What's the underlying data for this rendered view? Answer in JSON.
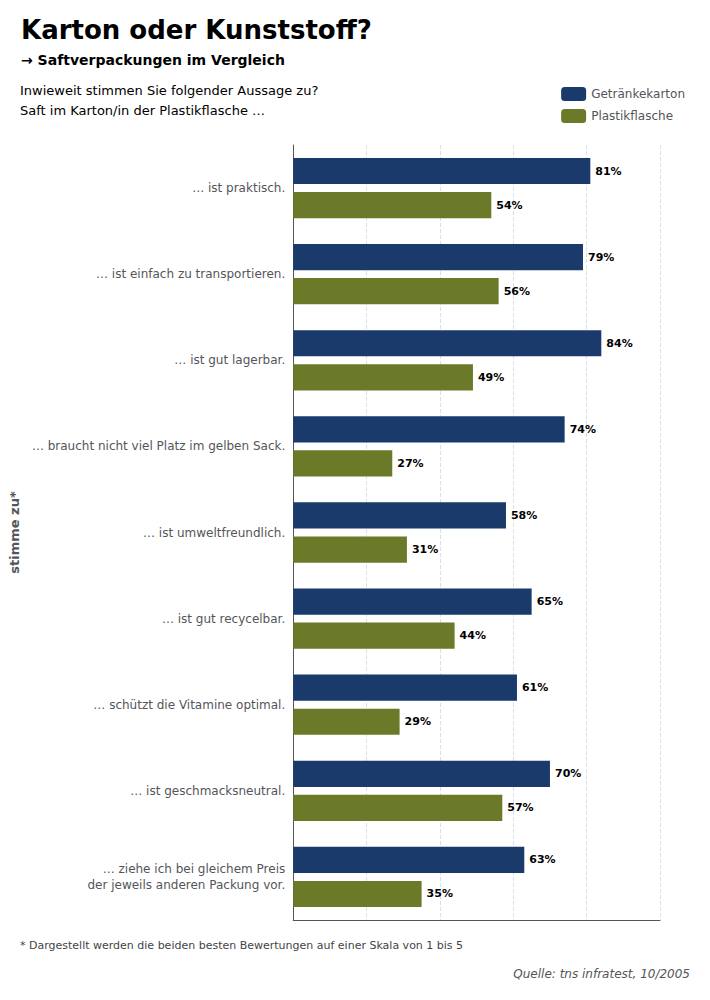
{
  "chart_data": {
    "type": "bar",
    "orientation": "horizontal",
    "title": "Karton oder Kunststoff?",
    "subtitle": "→ Saftverpackungen im Vergleich",
    "ylabel": "stimme zu*",
    "annotations": [
      "Inwieweit stimmen Sie folgender Aussage zu?",
      "Saft im Karton/in der Plastikflasche …",
      "* Dargestellt werden die beiden besten Bewertungen auf einer Skala von 1 bis 5",
      "Quelle: tns infratest, 10/2005"
    ],
    "categories": [
      "… ist praktisch.",
      "… ist einfach zu transportieren.",
      "… ist gut lagerbar.",
      "… braucht nicht viel Platz im gelben Sack.",
      "… ist umweltfreundlich.",
      "… ist gut recycelbar.",
      "… schützt die Vitamine optimal.",
      "… ist geschmacksneutral.",
      "… ziehe ich bei gleichem Preis\nder jeweils anderen Packung vor."
    ],
    "series": [
      {
        "name": "Getränkekarton",
        "color": "#1a3a6b",
        "values": [
          81,
          79,
          84,
          74,
          58,
          65,
          61,
          70,
          63
        ],
        "value_labels": [
          "81%",
          "79%",
          "84%",
          "74%",
          "58%",
          "65%",
          "61%",
          "70%",
          "63%"
        ]
      },
      {
        "name": "Plastikflasche",
        "color": "#6b7a28",
        "values": [
          54,
          56,
          49,
          27,
          31,
          44,
          29,
          57,
          35
        ],
        "value_labels": [
          "54%",
          "56%",
          "49%",
          "27%",
          "31%",
          "44%",
          "29%",
          "57%",
          "35%"
        ]
      }
    ],
    "xlim": [
      0,
      100
    ],
    "xticks": [
      0,
      20,
      40,
      60,
      80,
      100
    ],
    "grid": true,
    "legend": "upper right",
    "data_labels": true,
    "tick_labels": "y"
  }
}
